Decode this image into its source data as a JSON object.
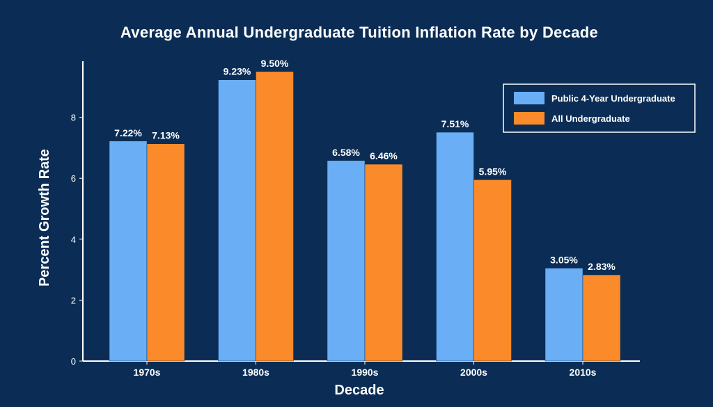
{
  "colors": {
    "background": "#0b2d55",
    "series_public": "#6aaef5",
    "series_all": "#fb8b2a",
    "axis": "#ffffff",
    "text": "#ffffff"
  },
  "chart_data": {
    "type": "bar",
    "title": "Average Annual Undergraduate Tuition Inflation Rate by Decade",
    "xlabel": "Decade",
    "ylabel": "Percent Growth Rate",
    "categories": [
      "1970s",
      "1980s",
      "1990s",
      "2000s",
      "2010s"
    ],
    "series": [
      {
        "name": "Public 4-Year Undergraduate",
        "values": [
          7.22,
          9.23,
          6.58,
          7.51,
          3.05
        ],
        "labels": [
          "7.22%",
          "9.23%",
          "6.58%",
          "7.51%",
          "3.05%"
        ],
        "color": "#6aaef5"
      },
      {
        "name": "All Undergraduate",
        "values": [
          7.13,
          9.5,
          6.46,
          5.95,
          2.83
        ],
        "labels": [
          "7.13%",
          "9.50%",
          "6.46%",
          "5.95%",
          "2.83%"
        ],
        "color": "#fb8b2a"
      }
    ],
    "ylim": [
      0,
      9.5
    ],
    "yticks": [
      0,
      2,
      4,
      6,
      8
    ],
    "grid": false,
    "legend_position": "top-right"
  }
}
